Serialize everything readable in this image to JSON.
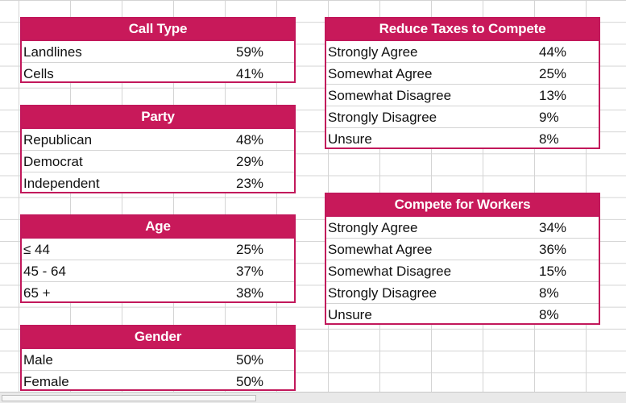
{
  "tables": {
    "call_type": {
      "title": "Call Type",
      "rows": [
        {
          "label": "Landlines",
          "value": "59%"
        },
        {
          "label": "Cells",
          "value": "41%"
        }
      ]
    },
    "party": {
      "title": "Party",
      "rows": [
        {
          "label": "Republican",
          "value": "48%"
        },
        {
          "label": "Democrat",
          "value": "29%"
        },
        {
          "label": "Independent",
          "value": "23%"
        }
      ]
    },
    "age": {
      "title": "Age",
      "rows": [
        {
          "label": "≤ 44",
          "value": "25%"
        },
        {
          "label": "45 - 64",
          "value": "37%"
        },
        {
          "label": "65 +",
          "value": "38%"
        }
      ]
    },
    "gender": {
      "title": "Gender",
      "rows": [
        {
          "label": "Male",
          "value": "50%"
        },
        {
          "label": "Female",
          "value": "50%"
        }
      ]
    },
    "reduce_taxes": {
      "title": "Reduce Taxes to Compete",
      "rows": [
        {
          "label": "Strongly Agree",
          "value": "44%"
        },
        {
          "label": "Somewhat Agree",
          "value": "25%"
        },
        {
          "label": "Somewhat Disagree",
          "value": "13%"
        },
        {
          "label": "Strongly Disagree",
          "value": "9%"
        },
        {
          "label": "Unsure",
          "value": "8%"
        }
      ]
    },
    "compete_workers": {
      "title": "Compete for Workers",
      "rows": [
        {
          "label": "Strongly Agree",
          "value": "34%"
        },
        {
          "label": "Somewhat Agree",
          "value": "36%"
        },
        {
          "label": "Somewhat Disagree",
          "value": "15%"
        },
        {
          "label": "Strongly Disagree",
          "value": "8%"
        },
        {
          "label": "Unsure",
          "value": "8%"
        }
      ]
    }
  },
  "colors": {
    "header_bg": "#c8195a",
    "header_text": "#ffffff",
    "border": "#c2185b",
    "gridline": "#d4d4d4"
  }
}
